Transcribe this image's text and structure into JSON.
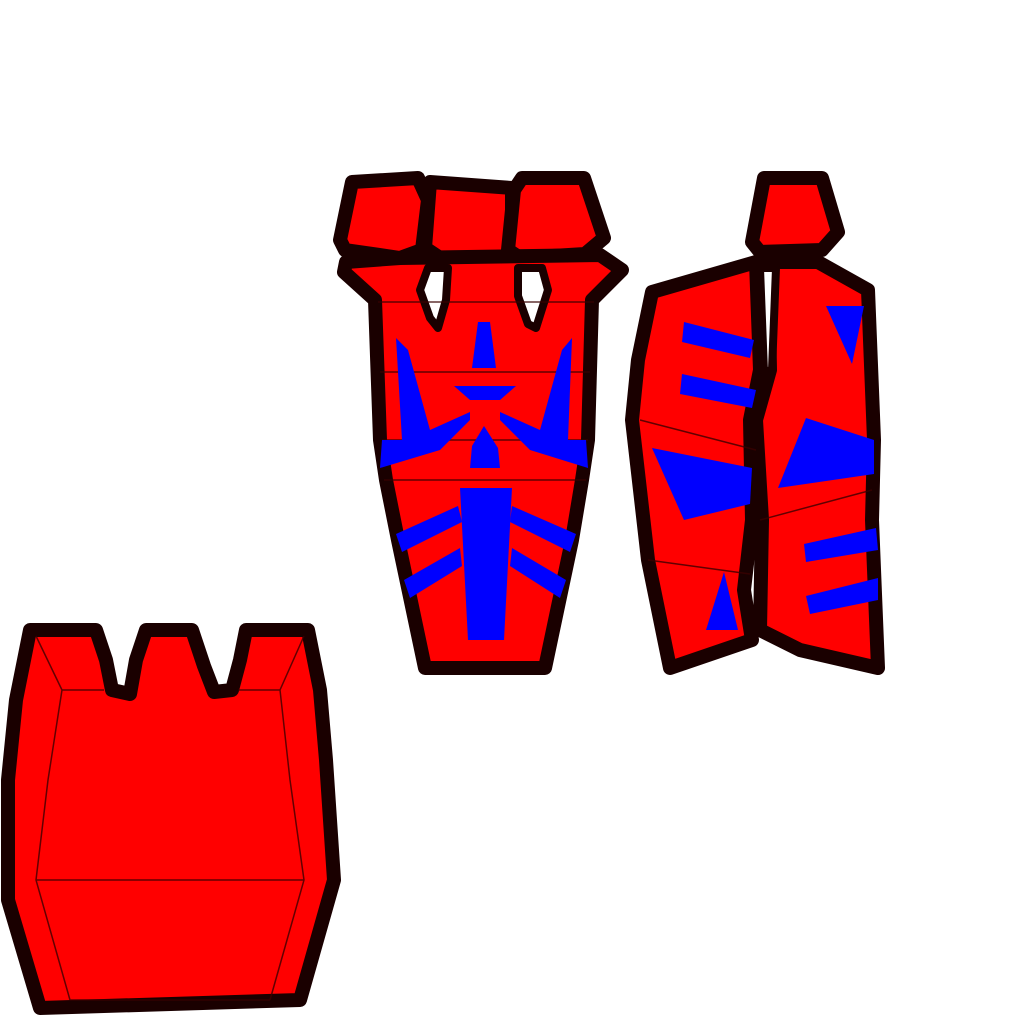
{
  "colors": {
    "background": "#ffffff",
    "panel": "#ff0000",
    "decal": "#0000ff",
    "seam": "#1a0000"
  }
}
